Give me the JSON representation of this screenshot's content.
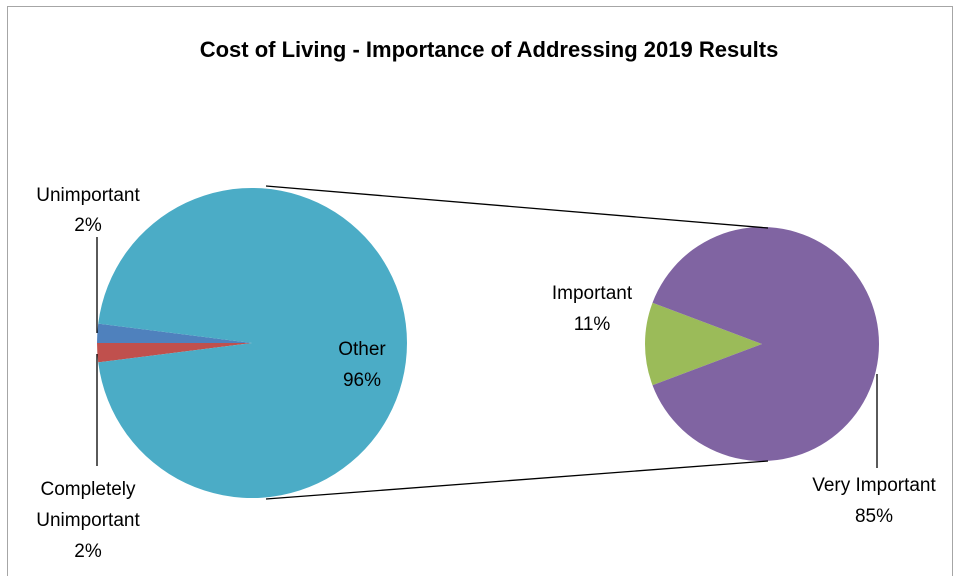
{
  "chart_data": {
    "type": "pie",
    "variant": "pie-of-pie",
    "title": "Cost of  Living - Importance of Addressing 2019 Results",
    "main_pie": {
      "slices": [
        {
          "name": "Unimportant",
          "value": 2,
          "label_pct": "2%",
          "color": "#c0504d"
        },
        {
          "name": "Completely Unimportant",
          "value": 2,
          "label_pct": "2%",
          "color": "#4f81bd"
        },
        {
          "name": "Other",
          "value": 96,
          "label_pct": "96%",
          "color": "#4bacc6"
        }
      ]
    },
    "secondary_pie": {
      "slices": [
        {
          "name": "Important",
          "value": 11,
          "label_pct": "11%",
          "color": "#9bbb59"
        },
        {
          "name": "Very Important",
          "value": 85,
          "label_pct": "85%",
          "color": "#8064a2"
        }
      ]
    }
  }
}
